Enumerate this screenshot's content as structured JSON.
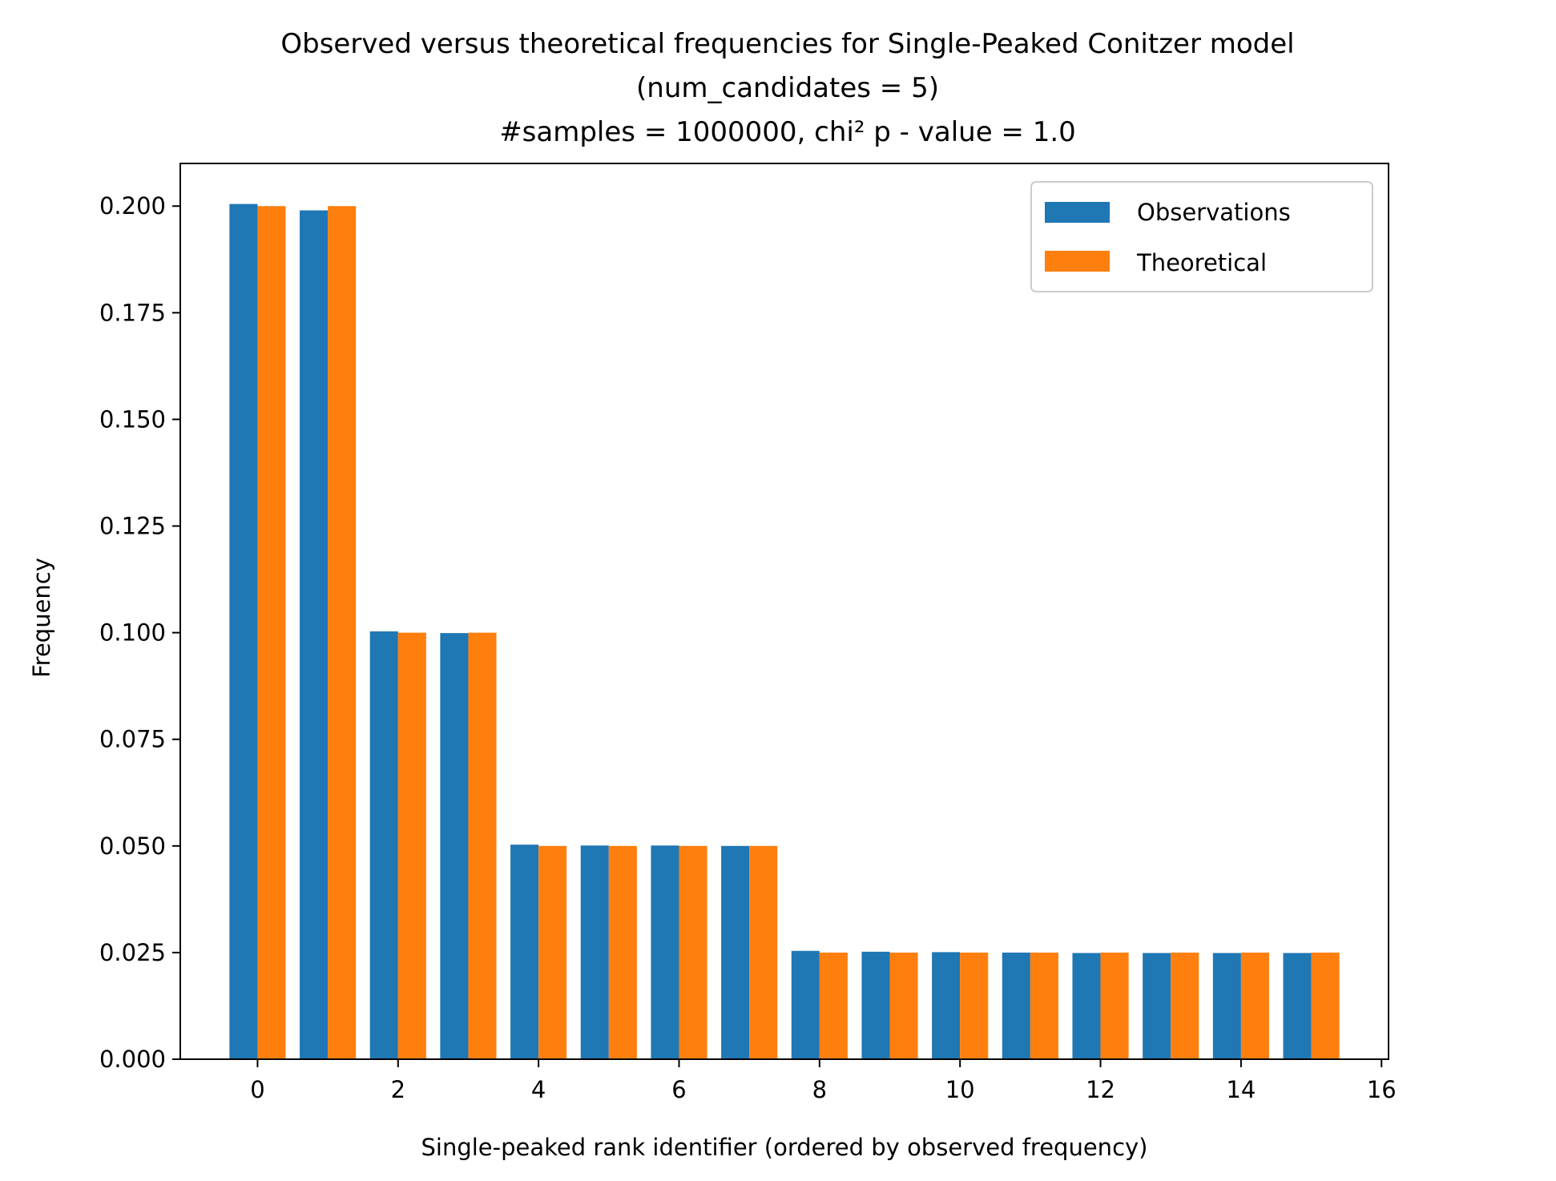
{
  "chart_data": {
    "type": "bar",
    "title_lines": [
      "Observed versus theoretical frequencies for Single-Peaked Conitzer model",
      "(num_candidates = 5)",
      "#samples = 1000000, chi² p - value = 1.0"
    ],
    "xlabel": "Single-peaked rank identifier (ordered by observed frequency)",
    "ylabel": "Frequency",
    "x": [
      0,
      1,
      2,
      3,
      4,
      5,
      6,
      7,
      8,
      9,
      10,
      11,
      12,
      13,
      14,
      15
    ],
    "xlim": [
      -1.1,
      16.1
    ],
    "ylim": [
      0,
      0.21
    ],
    "xticks": [
      0,
      2,
      4,
      6,
      8,
      10,
      12,
      14,
      16
    ],
    "xtick_labels": [
      "0",
      "2",
      "4",
      "6",
      "8",
      "10",
      "12",
      "14",
      "16"
    ],
    "yticks": [
      0,
      0.025,
      0.05,
      0.075,
      0.1,
      0.125,
      0.15,
      0.175,
      0.2
    ],
    "ytick_labels": [
      "0.000",
      "0.025",
      "0.050",
      "0.075",
      "0.100",
      "0.125",
      "0.150",
      "0.175",
      "0.200"
    ],
    "series": [
      {
        "name": "Observations",
        "color": "#1f77b4",
        "values": [
          0.2005,
          0.199,
          0.1003,
          0.0999,
          0.0503,
          0.0501,
          0.0501,
          0.05,
          0.0254,
          0.0252,
          0.0251,
          0.025,
          0.0249,
          0.0249,
          0.0249,
          0.0249
        ]
      },
      {
        "name": "Theoretical",
        "color": "#ff7f0e",
        "values": [
          0.2,
          0.2,
          0.1,
          0.1,
          0.05,
          0.05,
          0.05,
          0.05,
          0.025,
          0.025,
          0.025,
          0.025,
          0.025,
          0.025,
          0.025,
          0.025
        ]
      }
    ],
    "legend_position": "top-right",
    "grid": false
  }
}
